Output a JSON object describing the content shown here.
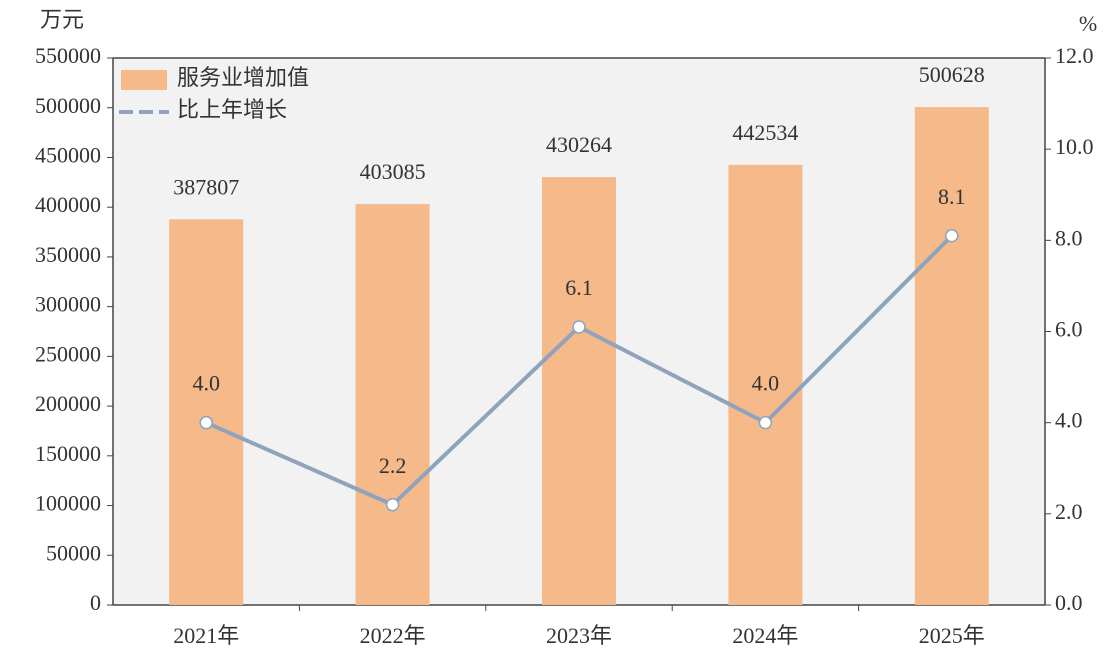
{
  "chart_data": {
    "type": "combo",
    "y_unit": "万元",
    "y2_unit": "%",
    "categories": [
      "2021年",
      "2022年",
      "2023年",
      "2024年",
      "2025年"
    ],
    "series": [
      {
        "name": "服务业增加值",
        "type": "bar",
        "color": "#f5b98a",
        "values": [
          387807,
          403085,
          430264,
          442534,
          500628
        ]
      },
      {
        "name": "比上年增长",
        "type": "line",
        "axis": "y2",
        "color": "#8fa3bd",
        "values": [
          4.0,
          2.2,
          6.1,
          4.0,
          8.1
        ],
        "value_labels": [
          "4.0",
          "2.2",
          "6.1",
          "4.0",
          "8.1"
        ]
      }
    ],
    "ylim": [
      0,
      550000
    ],
    "yticks": [
      0,
      50000,
      100000,
      150000,
      200000,
      250000,
      300000,
      350000,
      400000,
      450000,
      500000,
      550000
    ],
    "y2lim": [
      0,
      12
    ],
    "y2ticks": [
      {
        "value": 0,
        "label": "0.0"
      },
      {
        "value": 2,
        "label": "2.0"
      },
      {
        "value": 4,
        "label": "4.0"
      },
      {
        "value": 6,
        "label": "6.0"
      },
      {
        "value": 8,
        "label": "8.0"
      },
      {
        "value": 10,
        "label": "10.0"
      },
      {
        "value": 12,
        "label": "12.0"
      }
    ],
    "legend": "top-left",
    "plot_background": "#f2f2f2"
  }
}
